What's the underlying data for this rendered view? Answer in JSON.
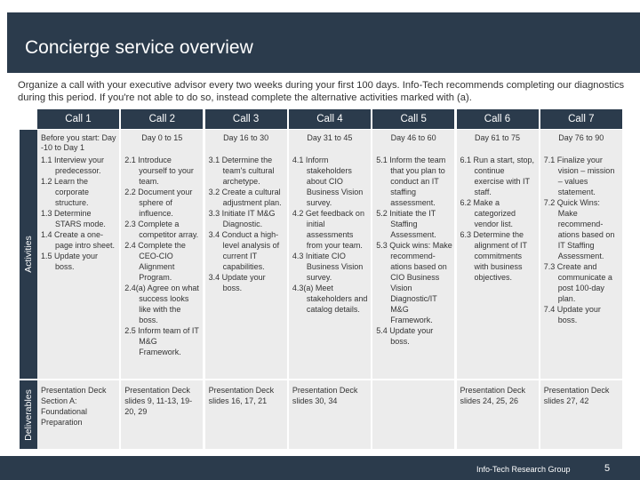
{
  "title": "Concierge service overview",
  "intro": "Organize a call with your executive advisor every two weeks during your first 100 days. Info-Tech recommends completing our diagnostics during this period. If you're not able to do so, instead complete the alternative activities marked with (a).",
  "row_labels": {
    "activities": "Activities",
    "deliverables": "Deliverables"
  },
  "calls": [
    {
      "label": "Call 1",
      "timing": "Before you start: Day -10 to Day 1",
      "activities": [
        "1.1 Interview your predecessor.",
        "1.2 Learn the corporate structure.",
        "1.3 Determine STARS mode.",
        "1.4 Create a one-page intro sheet.",
        "1.5 Update your boss."
      ],
      "deliverables": "Presentation Deck Section A: Foundational Preparation"
    },
    {
      "label": "Call 2",
      "timing": "Day 0 to 15",
      "activities": [
        "2.1 Introduce yourself to your team.",
        "2.2 Document your sphere of influence.",
        "2.3 Complete a competitor array.",
        "2.4 Complete the CEO-CIO Alignment Program.",
        "2.4(a) Agree on what success looks like with the boss.",
        "2.5 Inform team of IT M&G Framework."
      ],
      "deliverables": "Presentation Deck slides 9, 11-13, 19-20, 29"
    },
    {
      "label": "Call 3",
      "timing": "Day 16 to 30",
      "activities": [
        "3.1 Determine the team's cultural archetype.",
        "3.2 Create a cultural adjustment plan.",
        "3.3 Initiate IT M&G Diagnostic.",
        "3.4 Conduct a high-level analysis of current IT capabilities.",
        "3.4 Update your boss."
      ],
      "deliverables": "Presentation Deck slides 16, 17, 21"
    },
    {
      "label": "Call 4",
      "timing": "Day 31 to 45",
      "activities": [
        "4.1 Inform stakeholders about CIO Business Vision survey.",
        "4.2 Get feedback on initial assessments from your team.",
        "4.3 Initiate CIO Business Vision survey.",
        "4.3(a) Meet stakeholders and catalog details."
      ],
      "deliverables": "Presentation Deck slides 30, 34"
    },
    {
      "label": "Call 5",
      "timing": "Day 46 to 60",
      "activities": [
        "5.1 Inform the team that you plan to conduct an IT staffing assessment.",
        "5.2 Initiate the IT Staffing Assessment.",
        "5.3 Quick wins: Make recommend-ations based on CIO Business Vision Diagnostic/IT M&G Framework.",
        "5.4 Update your boss."
      ],
      "deliverables": ""
    },
    {
      "label": "Call 6",
      "timing": "Day 61 to 75",
      "activities": [
        "6.1 Run a start, stop, continue exercise with IT staff.",
        "6.2 Make a categorized vendor list.",
        "6.3 Determine the alignment of IT commitments with business objectives."
      ],
      "deliverables": "Presentation Deck slides 24, 25, 26"
    },
    {
      "label": "Call 7",
      "timing": "Day 76 to 90",
      "activities": [
        "7.1 Finalize your vision – mission – values statement.",
        "7.2 Quick Wins: Make recommend-ations based on IT Staffing Assessment.",
        "7.3 Create and communicate a post 100-day plan.",
        "7.4 Update your boss."
      ],
      "deliverables": "Presentation Deck slides 27, 42"
    }
  ],
  "footer": {
    "brand": "Info-Tech Research Group",
    "page": "5"
  },
  "colors": {
    "navy": "#2b3b4c",
    "cell": "#ececec"
  }
}
